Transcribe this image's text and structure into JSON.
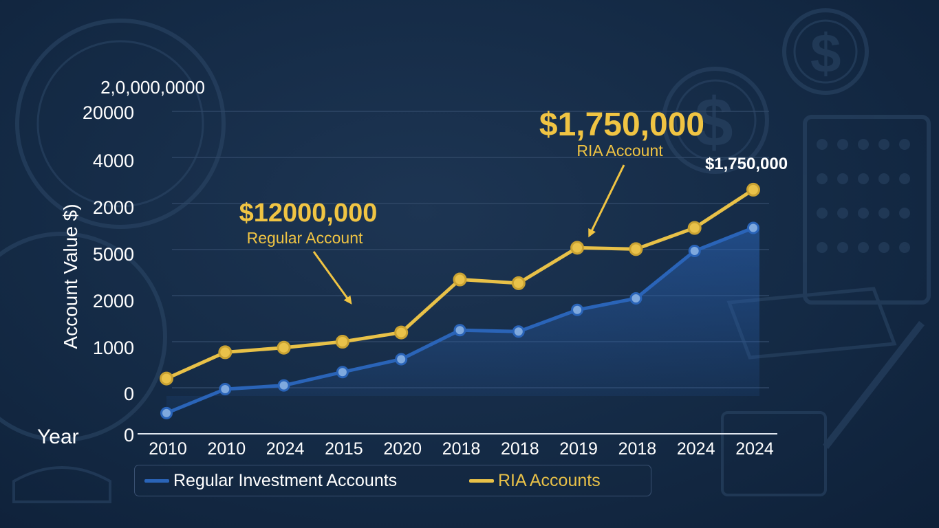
{
  "colors": {
    "regular": "#2a64b8",
    "regular_marker": "#7fa9de",
    "ria": "#e8c148",
    "annotation_gold": "#f0c443",
    "text": "#ffffff",
    "grid": "#2f4766"
  },
  "chart_data": {
    "type": "line",
    "title": "",
    "ylabel": "Account Value $)",
    "xlabel": "Year",
    "y_tick_labels": [
      "2,0,000,0000",
      "20000",
      "4000",
      "2000",
      "5000",
      "2000",
      "1000",
      "0",
      "0"
    ],
    "categories": [
      "2010",
      "2010",
      "2024",
      "2015",
      "2020",
      "2018",
      "2018",
      "2019",
      "2018",
      "2024",
      "2024"
    ],
    "ylim": [
      0,
      8
    ],
    "grid": true,
    "legend_position": "bottom",
    "series": [
      {
        "name": "Regular Investment Accounts",
        "values": [
          0.45,
          0.97,
          1.05,
          1.34,
          1.62,
          2.25,
          2.22,
          2.69,
          2.94,
          3.97,
          4.47
        ],
        "area": true
      },
      {
        "name": "RIA Accounts",
        "values": [
          1.2,
          1.77,
          1.87,
          2.0,
          2.2,
          3.35,
          3.27,
          4.04,
          4.01,
          4.47,
          5.3
        ]
      }
    ],
    "annotations": [
      {
        "value": "$12000,000",
        "label": "Regular Account"
      },
      {
        "value": "$1,750,000",
        "label": "RIA Account"
      },
      {
        "value": "$1,750,000"
      }
    ]
  }
}
